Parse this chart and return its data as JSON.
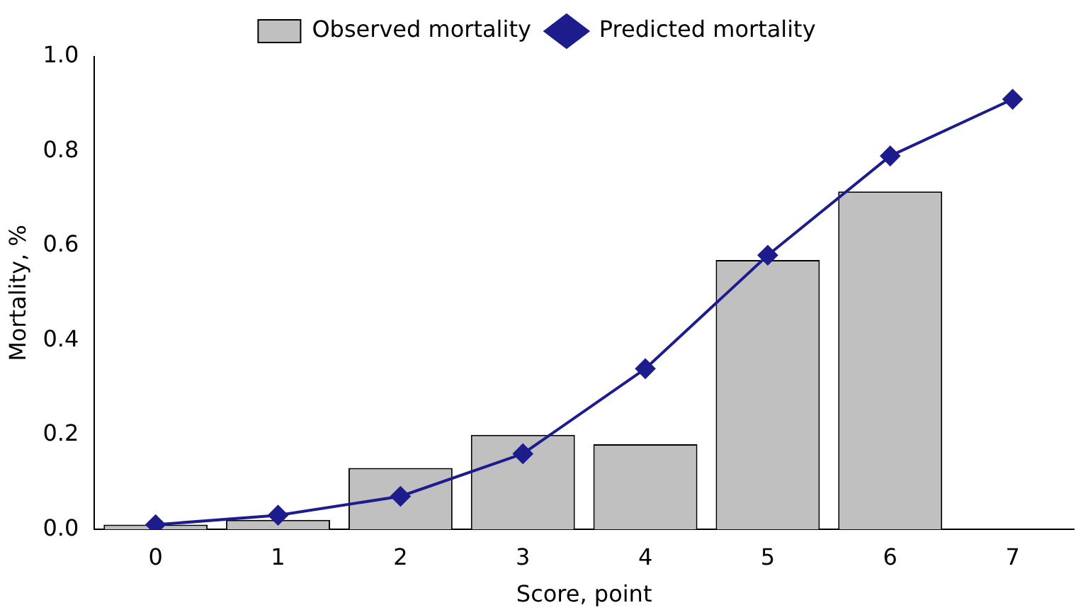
{
  "chart_data": {
    "type": "bar",
    "xlabel": "Score, point",
    "ylabel": "Mortality, %",
    "categories": [
      "0",
      "1",
      "2",
      "3",
      "4",
      "5",
      "6",
      "7"
    ],
    "series": [
      {
        "name": "Observed mortality",
        "color": "#c0c0c0",
        "values": [
          0.01,
          0.02,
          0.13,
          0.2,
          0.18,
          0.57,
          0.715,
          null
        ]
      },
      {
        "name": "Predicted mortality",
        "type": "line",
        "color": "#1c1c8c",
        "marker": "diamond",
        "values": [
          0.01,
          0.03,
          0.07,
          0.16,
          0.34,
          0.58,
          0.79,
          0.91
        ]
      }
    ],
    "ylim": [
      0,
      1
    ],
    "yticks": [
      {
        "value": 0,
        "label": "0.0"
      },
      {
        "value": 0.2,
        "label": "0.2"
      },
      {
        "value": 0.4,
        "label": "0.4"
      },
      {
        "value": 0.6,
        "label": "0.6"
      },
      {
        "value": 0.8,
        "label": "0.8"
      },
      {
        "value": 1,
        "label": "1.0"
      }
    ],
    "grid": false,
    "legend": "top"
  }
}
